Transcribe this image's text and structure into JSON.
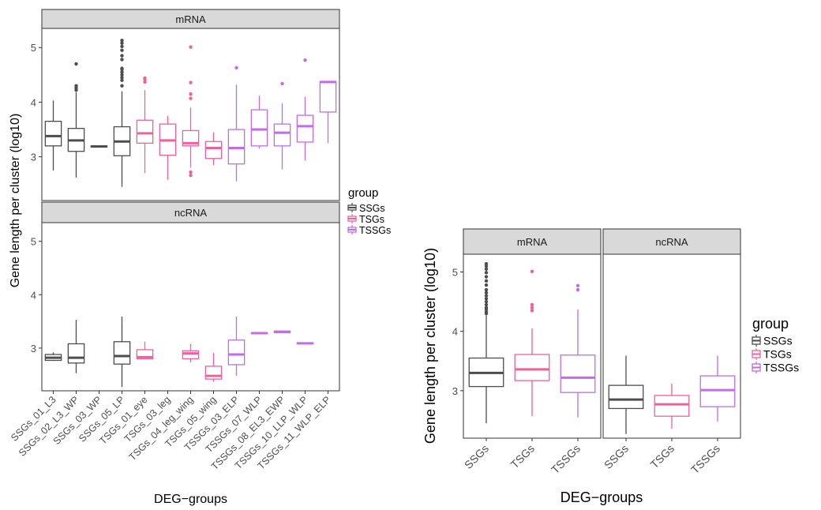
{
  "colors": {
    "SSGs": "#4d4d4d",
    "TSGs": "#f0609c",
    "TSSGs": "#c46aee",
    "strip_bg": "#d9d9d9",
    "frame": "#333333"
  },
  "chart_data": [
    {
      "type": "boxplot",
      "facets": [
        "mRNA",
        "ncRNA"
      ],
      "facet_layout": "rows",
      "ylabel": "Gene length per cluster (log10)",
      "xlabel": "DEG−groups",
      "ylim": [
        2.2,
        5.35
      ],
      "yticks": [
        3,
        4,
        5
      ],
      "categories": [
        "SSGs_01_L3",
        "SSGs_02_L3_WP",
        "SSGs_03_WP",
        "SSGs_05_LP",
        "TSGs_01_eye",
        "TSGs_03_leg",
        "TSGs_04_leg_wing",
        "TSGs_05_wing",
        "TSSGs_03_ELP",
        "TSSGs_07_WLP",
        "TSSGs_08_EL3_EWP",
        "TSSGs_10_LLP_WLP",
        "TSSGs_11_WLP_ELP"
      ],
      "category_group": [
        "SSGs",
        "SSGs",
        "SSGs",
        "SSGs",
        "TSGs",
        "TSGs",
        "TSGs",
        "TSGs",
        "TSSGs",
        "TSSGs",
        "TSSGs",
        "TSSGs",
        "TSSGs"
      ],
      "legend": {
        "title": "group",
        "items": [
          "SSGs",
          "TSGs",
          "TSSGs"
        ],
        "placement": "right"
      },
      "grid": false,
      "boxes": {
        "mRNA": [
          {
            "min": 2.75,
            "q1": 3.2,
            "median": 3.38,
            "q3": 3.65,
            "max": 4.03,
            "outliers": []
          },
          {
            "min": 2.62,
            "q1": 3.1,
            "median": 3.3,
            "q3": 3.52,
            "max": 4.18,
            "outliers": [
              4.22,
              4.26,
              4.3,
              4.7
            ]
          },
          {
            "min": 3.18,
            "q1": 3.18,
            "median": 3.19,
            "q3": 3.2,
            "max": 3.2,
            "outliers": []
          },
          {
            "min": 2.45,
            "q1": 3.02,
            "median": 3.28,
            "q3": 3.55,
            "max": 4.2,
            "outliers": [
              4.3,
              4.4,
              4.45,
              4.5,
              4.55,
              4.6,
              4.62,
              4.78,
              4.85,
              4.95,
              5.02,
              5.08,
              5.13
            ]
          },
          {
            "min": 2.7,
            "q1": 3.25,
            "median": 3.43,
            "q3": 3.67,
            "max": 4.22,
            "outliers": [
              4.37,
              4.42,
              4.44
            ]
          },
          {
            "min": 2.58,
            "q1": 3.03,
            "median": 3.3,
            "q3": 3.6,
            "max": 3.75,
            "outliers": []
          },
          {
            "min": 2.8,
            "q1": 3.2,
            "median": 3.25,
            "q3": 3.48,
            "max": 3.9,
            "outliers": [
              2.66,
              2.72,
              4.07,
              4.15,
              4.36,
              5.01
            ]
          },
          {
            "min": 2.85,
            "q1": 2.97,
            "median": 3.16,
            "q3": 3.28,
            "max": 3.45,
            "outliers": []
          },
          {
            "min": 2.55,
            "q1": 2.87,
            "median": 3.16,
            "q3": 3.5,
            "max": 4.32,
            "outliers": [
              4.63
            ]
          },
          {
            "min": 3.15,
            "q1": 3.2,
            "median": 3.5,
            "q3": 3.86,
            "max": 4.12,
            "outliers": []
          },
          {
            "min": 2.77,
            "q1": 3.2,
            "median": 3.44,
            "q3": 3.6,
            "max": 3.98,
            "outliers": [
              4.34
            ]
          },
          {
            "min": 2.93,
            "q1": 3.27,
            "median": 3.56,
            "q3": 3.76,
            "max": 4.1,
            "outliers": [
              4.77
            ]
          },
          {
            "min": 3.25,
            "q1": 3.82,
            "median": 4.37,
            "q3": 4.38,
            "max": 4.38,
            "outliers": []
          }
        ],
        "ncRNA": [
          {
            "min": 2.76,
            "q1": 2.77,
            "median": 2.82,
            "q3": 2.88,
            "max": 2.92,
            "outliers": []
          },
          {
            "min": 2.53,
            "q1": 2.72,
            "median": 2.82,
            "q3": 3.08,
            "max": 3.53,
            "outliers": []
          },
          null,
          {
            "min": 2.27,
            "q1": 2.7,
            "median": 2.85,
            "q3": 3.12,
            "max": 3.59,
            "outliers": []
          },
          {
            "min": 2.79,
            "q1": 2.8,
            "median": 2.83,
            "q3": 2.97,
            "max": 3.12,
            "outliers": []
          },
          null,
          {
            "min": 2.73,
            "q1": 2.8,
            "median": 2.9,
            "q3": 2.95,
            "max": 3.08,
            "outliers": []
          },
          {
            "min": 2.37,
            "q1": 2.42,
            "median": 2.48,
            "q3": 2.66,
            "max": 2.91,
            "outliers": []
          },
          {
            "min": 2.48,
            "q1": 2.69,
            "median": 2.88,
            "q3": 3.15,
            "max": 3.59,
            "outliers": []
          },
          {
            "min": 3.27,
            "q1": 3.27,
            "median": 3.28,
            "q3": 3.28,
            "max": 3.29,
            "outliers": []
          },
          {
            "min": 3.29,
            "q1": 3.29,
            "median": 3.3,
            "q3": 3.32,
            "max": 3.33,
            "outliers": []
          },
          {
            "min": 3.08,
            "q1": 3.08,
            "median": 3.09,
            "q3": 3.1,
            "max": 3.1,
            "outliers": []
          },
          null
        ]
      }
    },
    {
      "type": "boxplot",
      "facets": [
        "mRNA",
        "ncRNA"
      ],
      "facet_layout": "columns",
      "ylabel": "Gene length per cluster (log10)",
      "xlabel": "DEG−groups",
      "ylim": [
        2.2,
        5.3
      ],
      "yticks": [
        3,
        4,
        5
      ],
      "categories": [
        "SSGs",
        "TSGs",
        "TSSGs"
      ],
      "category_group": [
        "SSGs",
        "TSGs",
        "TSSGs"
      ],
      "legend": {
        "title": "group",
        "items": [
          "SSGs",
          "TSGs",
          "TSSGs"
        ],
        "placement": "right"
      },
      "grid": false,
      "boxes": {
        "mRNA": [
          {
            "min": 2.45,
            "q1": 3.07,
            "median": 3.3,
            "q3": 3.55,
            "max": 4.27,
            "outliers": [
              4.3,
              4.33,
              4.37,
              4.4,
              4.45,
              4.5,
              4.55,
              4.6,
              4.65,
              4.7,
              4.78,
              4.85,
              4.92,
              4.99,
              5.05,
              5.1,
              5.14
            ]
          },
          {
            "min": 2.57,
            "q1": 3.17,
            "median": 3.36,
            "q3": 3.61,
            "max": 4.05,
            "outliers": [
              4.35,
              4.4,
              4.45,
              5.01
            ]
          },
          {
            "min": 2.55,
            "q1": 2.97,
            "median": 3.22,
            "q3": 3.6,
            "max": 4.37,
            "outliers": [
              4.7,
              4.77
            ]
          }
        ],
        "ncRNA": [
          {
            "min": 2.27,
            "q1": 2.7,
            "median": 2.85,
            "q3": 3.09,
            "max": 3.59,
            "outliers": []
          },
          {
            "min": 2.36,
            "q1": 2.57,
            "median": 2.77,
            "q3": 2.92,
            "max": 3.12,
            "outliers": []
          },
          {
            "min": 2.48,
            "q1": 2.73,
            "median": 3.01,
            "q3": 3.25,
            "max": 3.59,
            "outliers": []
          }
        ]
      }
    }
  ]
}
